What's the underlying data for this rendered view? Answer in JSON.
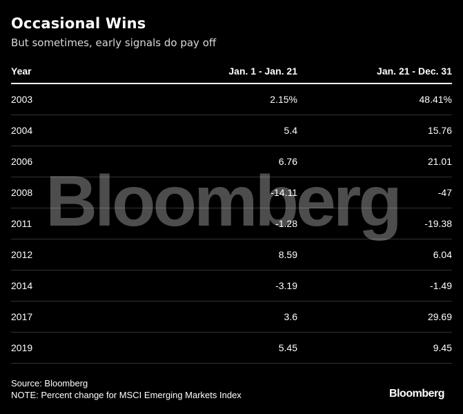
{
  "title": "Occasional Wins",
  "subtitle": "But sometimes, early signals do pay off",
  "chart_data": {
    "type": "table",
    "columns": [
      "Year",
      "Jan. 1 - Jan. 21",
      "Jan. 21 - Dec. 31"
    ],
    "rows": [
      {
        "year": "2003",
        "jan1_jan21": "2.15%",
        "jan21_dec31": "48.41%"
      },
      {
        "year": "2004",
        "jan1_jan21": "5.4",
        "jan21_dec31": "15.76"
      },
      {
        "year": "2006",
        "jan1_jan21": "6.76",
        "jan21_dec31": "21.01"
      },
      {
        "year": "2008",
        "jan1_jan21": "-14.11",
        "jan21_dec31": "-47"
      },
      {
        "year": "2011",
        "jan1_jan21": "-1.28",
        "jan21_dec31": "-19.38"
      },
      {
        "year": "2012",
        "jan1_jan21": "8.59",
        "jan21_dec31": "6.04"
      },
      {
        "year": "2014",
        "jan1_jan21": "-3.19",
        "jan21_dec31": "-1.49"
      },
      {
        "year": "2017",
        "jan1_jan21": "3.6",
        "jan21_dec31": "29.69"
      },
      {
        "year": "2019",
        "jan1_jan21": "5.45",
        "jan21_dec31": "9.45"
      }
    ]
  },
  "watermark": "Bloomberg",
  "source": "Source: Bloomberg",
  "note": "NOTE: Percent change for MSCI Emerging Markets Index",
  "brand": "Bloomberg",
  "colors": {
    "background": "#000000",
    "text": "#ffffff",
    "divider": "#333333"
  }
}
